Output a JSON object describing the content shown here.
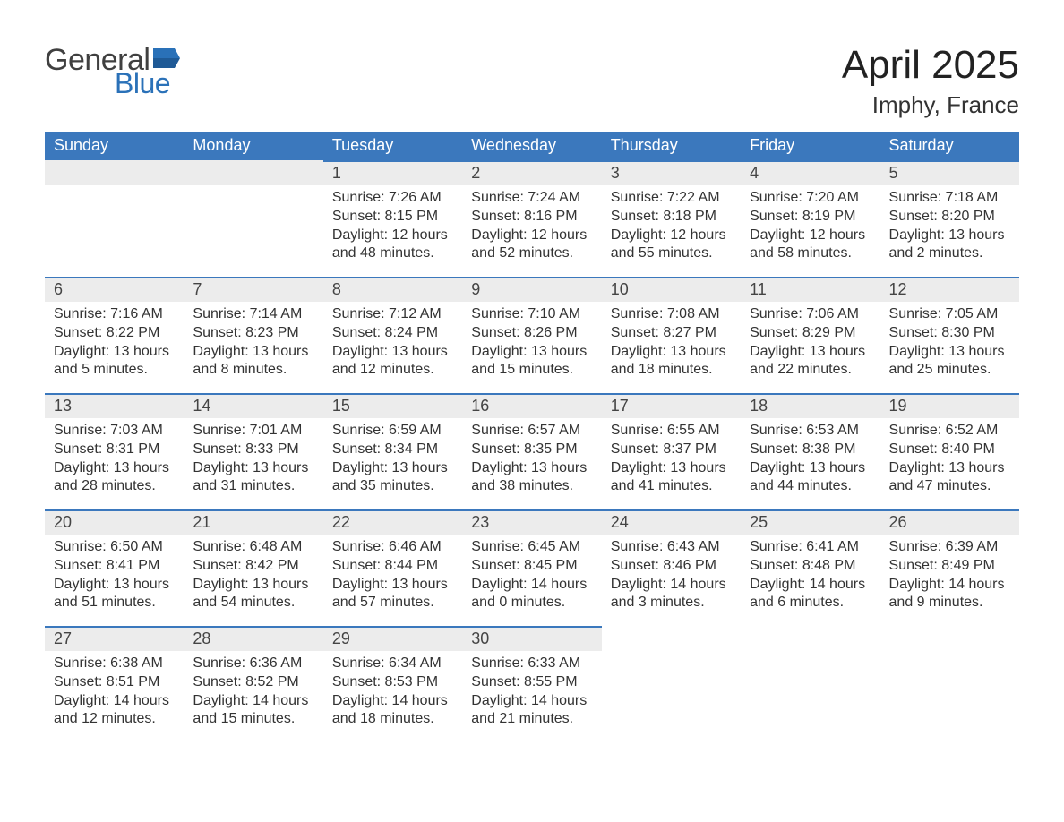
{
  "brand": {
    "word1": "General",
    "word2": "Blue"
  },
  "title": "April 2025",
  "location": "Imphy, France",
  "colors": {
    "header_bg": "#3b78bd",
    "header_text": "#ffffff",
    "daynum_bg": "#ececec",
    "row_border": "#3b78bd",
    "body_text": "#333333",
    "logo_gray": "#404040",
    "logo_blue": "#2a71b8",
    "page_bg": "#ffffff"
  },
  "typography": {
    "title_fontsize": 44,
    "location_fontsize": 26,
    "header_fontsize": 18,
    "daynum_fontsize": 18,
    "body_fontsize": 16
  },
  "weekdays": [
    "Sunday",
    "Monday",
    "Tuesday",
    "Wednesday",
    "Thursday",
    "Friday",
    "Saturday"
  ],
  "weeks": [
    [
      {
        "day": "",
        "sunrise": "",
        "sunset": "",
        "daylight": ""
      },
      {
        "day": "",
        "sunrise": "",
        "sunset": "",
        "daylight": ""
      },
      {
        "day": "1",
        "sunrise": "Sunrise: 7:26 AM",
        "sunset": "Sunset: 8:15 PM",
        "daylight": "Daylight: 12 hours and 48 minutes."
      },
      {
        "day": "2",
        "sunrise": "Sunrise: 7:24 AM",
        "sunset": "Sunset: 8:16 PM",
        "daylight": "Daylight: 12 hours and 52 minutes."
      },
      {
        "day": "3",
        "sunrise": "Sunrise: 7:22 AM",
        "sunset": "Sunset: 8:18 PM",
        "daylight": "Daylight: 12 hours and 55 minutes."
      },
      {
        "day": "4",
        "sunrise": "Sunrise: 7:20 AM",
        "sunset": "Sunset: 8:19 PM",
        "daylight": "Daylight: 12 hours and 58 minutes."
      },
      {
        "day": "5",
        "sunrise": "Sunrise: 7:18 AM",
        "sunset": "Sunset: 8:20 PM",
        "daylight": "Daylight: 13 hours and 2 minutes."
      }
    ],
    [
      {
        "day": "6",
        "sunrise": "Sunrise: 7:16 AM",
        "sunset": "Sunset: 8:22 PM",
        "daylight": "Daylight: 13 hours and 5 minutes."
      },
      {
        "day": "7",
        "sunrise": "Sunrise: 7:14 AM",
        "sunset": "Sunset: 8:23 PM",
        "daylight": "Daylight: 13 hours and 8 minutes."
      },
      {
        "day": "8",
        "sunrise": "Sunrise: 7:12 AM",
        "sunset": "Sunset: 8:24 PM",
        "daylight": "Daylight: 13 hours and 12 minutes."
      },
      {
        "day": "9",
        "sunrise": "Sunrise: 7:10 AM",
        "sunset": "Sunset: 8:26 PM",
        "daylight": "Daylight: 13 hours and 15 minutes."
      },
      {
        "day": "10",
        "sunrise": "Sunrise: 7:08 AM",
        "sunset": "Sunset: 8:27 PM",
        "daylight": "Daylight: 13 hours and 18 minutes."
      },
      {
        "day": "11",
        "sunrise": "Sunrise: 7:06 AM",
        "sunset": "Sunset: 8:29 PM",
        "daylight": "Daylight: 13 hours and 22 minutes."
      },
      {
        "day": "12",
        "sunrise": "Sunrise: 7:05 AM",
        "sunset": "Sunset: 8:30 PM",
        "daylight": "Daylight: 13 hours and 25 minutes."
      }
    ],
    [
      {
        "day": "13",
        "sunrise": "Sunrise: 7:03 AM",
        "sunset": "Sunset: 8:31 PM",
        "daylight": "Daylight: 13 hours and 28 minutes."
      },
      {
        "day": "14",
        "sunrise": "Sunrise: 7:01 AM",
        "sunset": "Sunset: 8:33 PM",
        "daylight": "Daylight: 13 hours and 31 minutes."
      },
      {
        "day": "15",
        "sunrise": "Sunrise: 6:59 AM",
        "sunset": "Sunset: 8:34 PM",
        "daylight": "Daylight: 13 hours and 35 minutes."
      },
      {
        "day": "16",
        "sunrise": "Sunrise: 6:57 AM",
        "sunset": "Sunset: 8:35 PM",
        "daylight": "Daylight: 13 hours and 38 minutes."
      },
      {
        "day": "17",
        "sunrise": "Sunrise: 6:55 AM",
        "sunset": "Sunset: 8:37 PM",
        "daylight": "Daylight: 13 hours and 41 minutes."
      },
      {
        "day": "18",
        "sunrise": "Sunrise: 6:53 AM",
        "sunset": "Sunset: 8:38 PM",
        "daylight": "Daylight: 13 hours and 44 minutes."
      },
      {
        "day": "19",
        "sunrise": "Sunrise: 6:52 AM",
        "sunset": "Sunset: 8:40 PM",
        "daylight": "Daylight: 13 hours and 47 minutes."
      }
    ],
    [
      {
        "day": "20",
        "sunrise": "Sunrise: 6:50 AM",
        "sunset": "Sunset: 8:41 PM",
        "daylight": "Daylight: 13 hours and 51 minutes."
      },
      {
        "day": "21",
        "sunrise": "Sunrise: 6:48 AM",
        "sunset": "Sunset: 8:42 PM",
        "daylight": "Daylight: 13 hours and 54 minutes."
      },
      {
        "day": "22",
        "sunrise": "Sunrise: 6:46 AM",
        "sunset": "Sunset: 8:44 PM",
        "daylight": "Daylight: 13 hours and 57 minutes."
      },
      {
        "day": "23",
        "sunrise": "Sunrise: 6:45 AM",
        "sunset": "Sunset: 8:45 PM",
        "daylight": "Daylight: 14 hours and 0 minutes."
      },
      {
        "day": "24",
        "sunrise": "Sunrise: 6:43 AM",
        "sunset": "Sunset: 8:46 PM",
        "daylight": "Daylight: 14 hours and 3 minutes."
      },
      {
        "day": "25",
        "sunrise": "Sunrise: 6:41 AM",
        "sunset": "Sunset: 8:48 PM",
        "daylight": "Daylight: 14 hours and 6 minutes."
      },
      {
        "day": "26",
        "sunrise": "Sunrise: 6:39 AM",
        "sunset": "Sunset: 8:49 PM",
        "daylight": "Daylight: 14 hours and 9 minutes."
      }
    ],
    [
      {
        "day": "27",
        "sunrise": "Sunrise: 6:38 AM",
        "sunset": "Sunset: 8:51 PM",
        "daylight": "Daylight: 14 hours and 12 minutes."
      },
      {
        "day": "28",
        "sunrise": "Sunrise: 6:36 AM",
        "sunset": "Sunset: 8:52 PM",
        "daylight": "Daylight: 14 hours and 15 minutes."
      },
      {
        "day": "29",
        "sunrise": "Sunrise: 6:34 AM",
        "sunset": "Sunset: 8:53 PM",
        "daylight": "Daylight: 14 hours and 18 minutes."
      },
      {
        "day": "30",
        "sunrise": "Sunrise: 6:33 AM",
        "sunset": "Sunset: 8:55 PM",
        "daylight": "Daylight: 14 hours and 21 minutes."
      },
      {
        "day": "",
        "sunrise": "",
        "sunset": "",
        "daylight": ""
      },
      {
        "day": "",
        "sunrise": "",
        "sunset": "",
        "daylight": ""
      },
      {
        "day": "",
        "sunrise": "",
        "sunset": "",
        "daylight": ""
      }
    ]
  ]
}
